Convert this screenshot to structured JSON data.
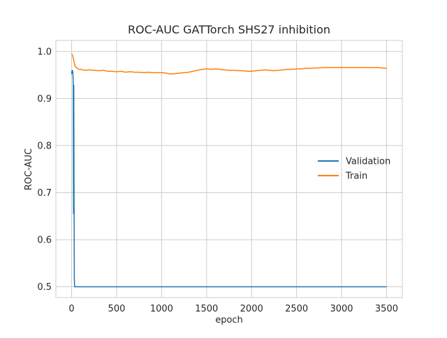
{
  "chart_data": {
    "type": "line",
    "title": "ROC-AUC GATTorch SHS27 inhibition",
    "xlabel": "epoch",
    "ylabel": "ROC-AUC",
    "xlim": [
      -175,
      3675
    ],
    "ylim": [
      0.477,
      1.0235
    ],
    "xticks": [
      0,
      500,
      1000,
      1500,
      2000,
      2500,
      3000,
      3500
    ],
    "yticks": [
      0.5,
      0.6,
      0.7,
      0.8,
      0.9,
      1.0
    ],
    "xtick_labels": [
      "0",
      "500",
      "1000",
      "1500",
      "2000",
      "2500",
      "3000",
      "3500"
    ],
    "ytick_labels": [
      "0.5",
      "0.6",
      "0.7",
      "0.8",
      "0.9",
      "1.0"
    ],
    "grid": true,
    "legend_position": "center-right",
    "series": [
      {
        "name": "Validation",
        "color": "#1f77b4",
        "x": [
          0,
          3,
          6,
          9,
          12,
          15,
          18,
          21,
          24,
          27,
          30,
          33,
          36,
          40,
          60,
          100,
          500,
          1000,
          1500,
          2000,
          2500,
          3000,
          3500
        ],
        "y": [
          0.952,
          0.958,
          0.955,
          0.96,
          0.957,
          0.952,
          0.93,
          0.655,
          0.928,
          0.7,
          0.52,
          0.5,
          0.5,
          0.5,
          0.5,
          0.5,
          0.5,
          0.5,
          0.5,
          0.5,
          0.5,
          0.5,
          0.5
        ]
      },
      {
        "name": "Train",
        "color": "#ff7f0e",
        "x": [
          0,
          10,
          20,
          30,
          40,
          60,
          80,
          100,
          150,
          200,
          250,
          300,
          350,
          400,
          450,
          500,
          550,
          600,
          650,
          700,
          750,
          800,
          850,
          900,
          950,
          1000,
          1050,
          1100,
          1150,
          1200,
          1250,
          1300,
          1350,
          1400,
          1450,
          1500,
          1550,
          1600,
          1650,
          1700,
          1750,
          1800,
          1850,
          1900,
          1950,
          2000,
          2050,
          2100,
          2150,
          2200,
          2250,
          2300,
          2350,
          2400,
          2450,
          2500,
          2550,
          2600,
          2650,
          2700,
          2750,
          2800,
          2850,
          2900,
          2950,
          3000,
          3050,
          3100,
          3150,
          3200,
          3250,
          3300,
          3350,
          3400,
          3450,
          3500
        ],
        "y": [
          0.995,
          0.992,
          0.985,
          0.975,
          0.968,
          0.965,
          0.962,
          0.962,
          0.96,
          0.961,
          0.96,
          0.959,
          0.96,
          0.958,
          0.958,
          0.957,
          0.958,
          0.956,
          0.957,
          0.956,
          0.956,
          0.955,
          0.956,
          0.955,
          0.955,
          0.955,
          0.954,
          0.952,
          0.953,
          0.954,
          0.955,
          0.956,
          0.958,
          0.96,
          0.962,
          0.963,
          0.962,
          0.963,
          0.962,
          0.961,
          0.96,
          0.96,
          0.959,
          0.959,
          0.958,
          0.958,
          0.959,
          0.96,
          0.961,
          0.96,
          0.959,
          0.96,
          0.961,
          0.962,
          0.962,
          0.963,
          0.963,
          0.964,
          0.964,
          0.965,
          0.965,
          0.966,
          0.966,
          0.966,
          0.966,
          0.966,
          0.966,
          0.966,
          0.966,
          0.966,
          0.966,
          0.966,
          0.966,
          0.966,
          0.965,
          0.964
        ]
      }
    ]
  }
}
